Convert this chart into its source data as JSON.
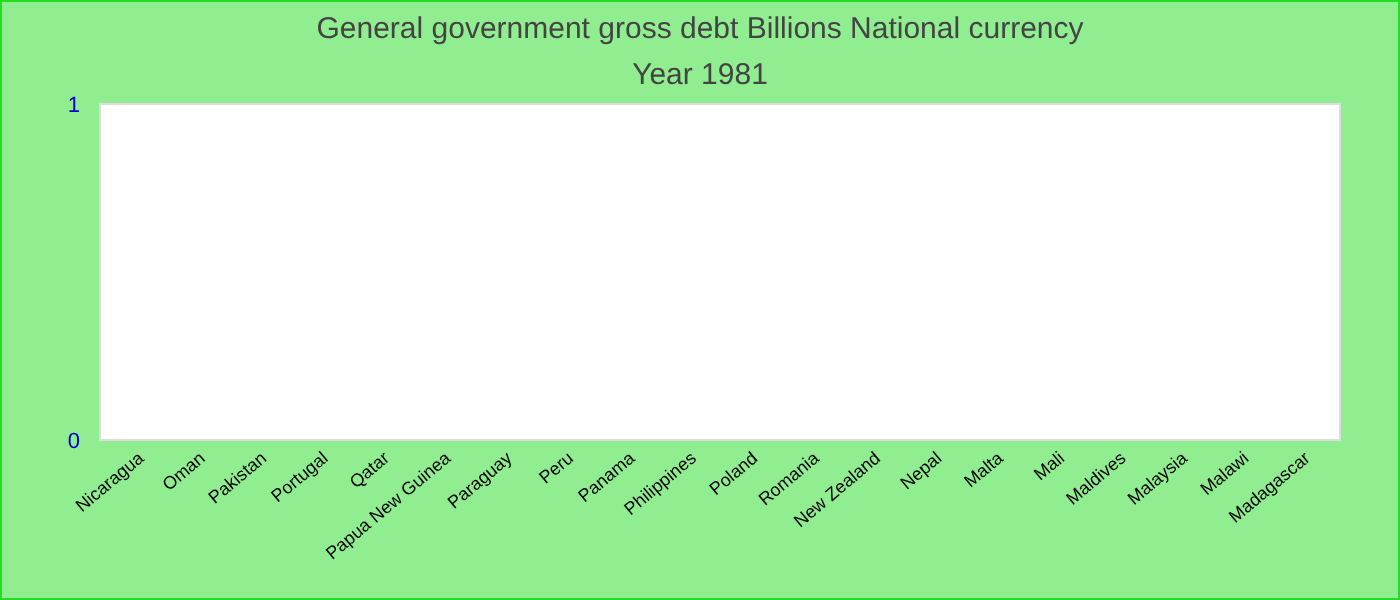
{
  "chart_data": {
    "type": "bar",
    "title": "General government gross debt Billions National currency",
    "subtitle": "Year 1981",
    "categories": [
      "Nicaragua",
      "Oman",
      "Pakistan",
      "Portugal",
      "Qatar",
      "Papua New Guinea",
      "Paraguay",
      "Peru",
      "Panama",
      "Philippines",
      "Poland",
      "Romania",
      "New Zealand",
      "Nepal",
      "Malta",
      "Mali",
      "Maldives",
      "Malaysia",
      "Malawi",
      "Madagascar"
    ],
    "values": [
      null,
      null,
      null,
      null,
      null,
      null,
      null,
      null,
      null,
      null,
      null,
      null,
      null,
      null,
      null,
      null,
      null,
      null,
      null,
      null
    ],
    "ylim": [
      0,
      1
    ],
    "yticks": [
      0,
      1
    ]
  }
}
